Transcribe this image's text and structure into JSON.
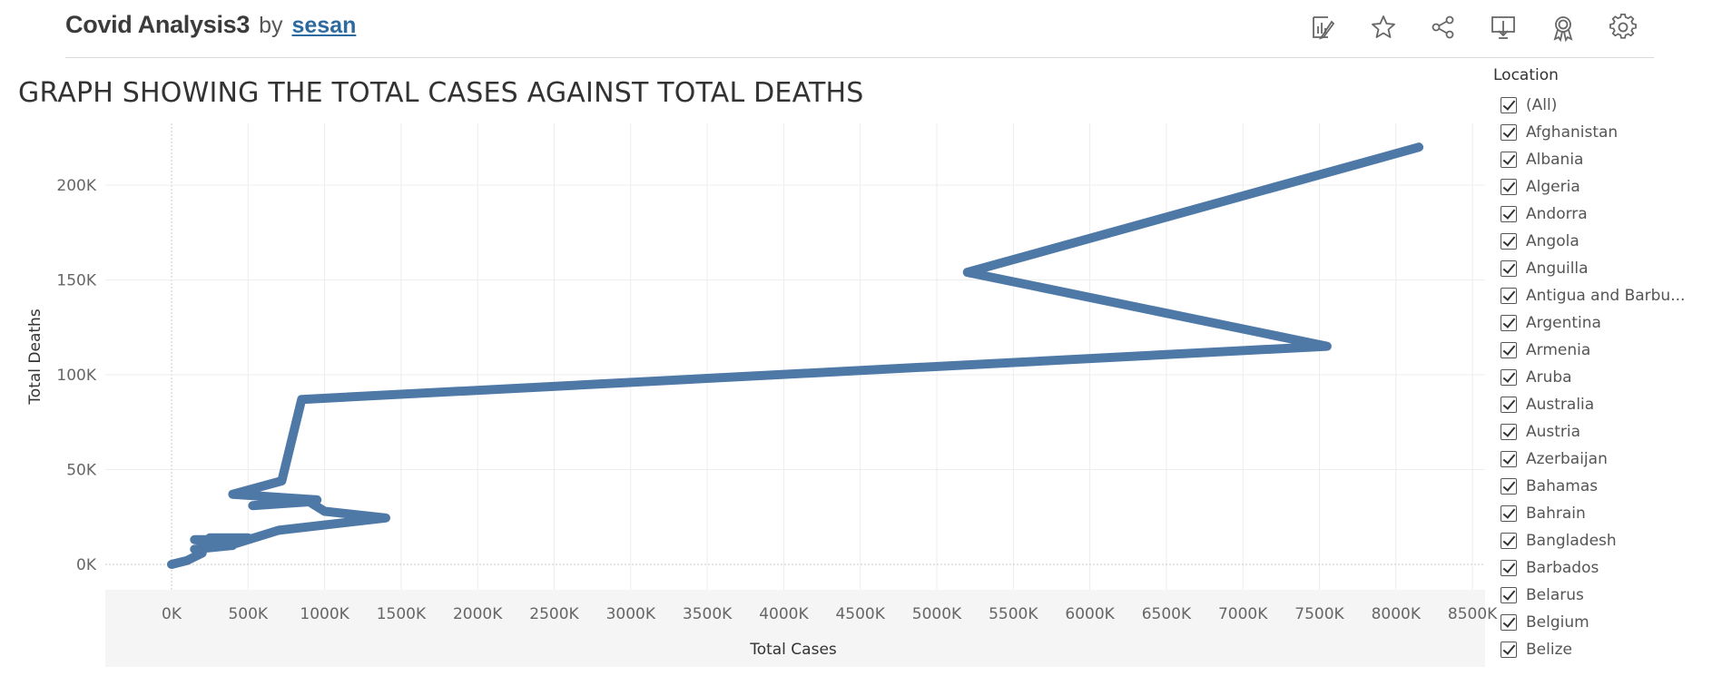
{
  "header": {
    "workbook_title": "Covid Analysis3",
    "by_label": "by",
    "author": "sesan"
  },
  "toolbar": [
    {
      "name": "edit-icon",
      "label": "Edit"
    },
    {
      "name": "star-icon",
      "label": "Favorite"
    },
    {
      "name": "share-icon",
      "label": "Share"
    },
    {
      "name": "download-icon",
      "label": "Download"
    },
    {
      "name": "award-icon",
      "label": "Metrics"
    },
    {
      "name": "gear-icon",
      "label": "Settings"
    }
  ],
  "sheet_title": "GRAPH SHOWING THE TOTAL CASES AGAINST TOTAL DEATHS",
  "chart_data": {
    "type": "line",
    "title": "GRAPH SHOWING THE TOTAL CASES AGAINST TOTAL DEATHS",
    "xlabel": "Total Cases",
    "ylabel": "Total Deaths",
    "x_ticks": [
      "0K",
      "500K",
      "1000K",
      "1500K",
      "2000K",
      "2500K",
      "3000K",
      "3500K",
      "4000K",
      "4500K",
      "5000K",
      "5500K",
      "6000K",
      "6500K",
      "7000K",
      "7500K",
      "8000K",
      "8500K"
    ],
    "y_ticks": [
      "0K",
      "50K",
      "100K",
      "150K",
      "200K"
    ],
    "xlim": [
      -430000,
      8600000
    ],
    "ylim": [
      0,
      232000
    ],
    "grid": true,
    "color": "#4e79a7",
    "series": [
      {
        "x": [
          0,
          100000,
          200000,
          150000,
          400000,
          300000,
          250000,
          500000,
          350000,
          150000,
          420000,
          700000,
          1400000,
          1000000,
          900000,
          530000,
          950000,
          400000,
          720000,
          850000,
          7550000,
          5200000,
          8150000
        ],
        "y": [
          0,
          2000,
          6000,
          8000,
          10000,
          12000,
          14000,
          14000,
          13000,
          13000,
          11000,
          18000,
          24500,
          28000,
          33000,
          31000,
          34000,
          37000,
          44000,
          87000,
          115000,
          154000,
          220000
        ]
      }
    ]
  },
  "legend": {
    "title": "Location",
    "items": [
      "(All)",
      "Afghanistan",
      "Albania",
      "Algeria",
      "Andorra",
      "Angola",
      "Anguilla",
      "Antigua and Barbu...",
      "Argentina",
      "Armenia",
      "Aruba",
      "Australia",
      "Austria",
      "Azerbaijan",
      "Bahamas",
      "Bahrain",
      "Bangladesh",
      "Barbados",
      "Belarus",
      "Belgium",
      "Belize"
    ]
  }
}
